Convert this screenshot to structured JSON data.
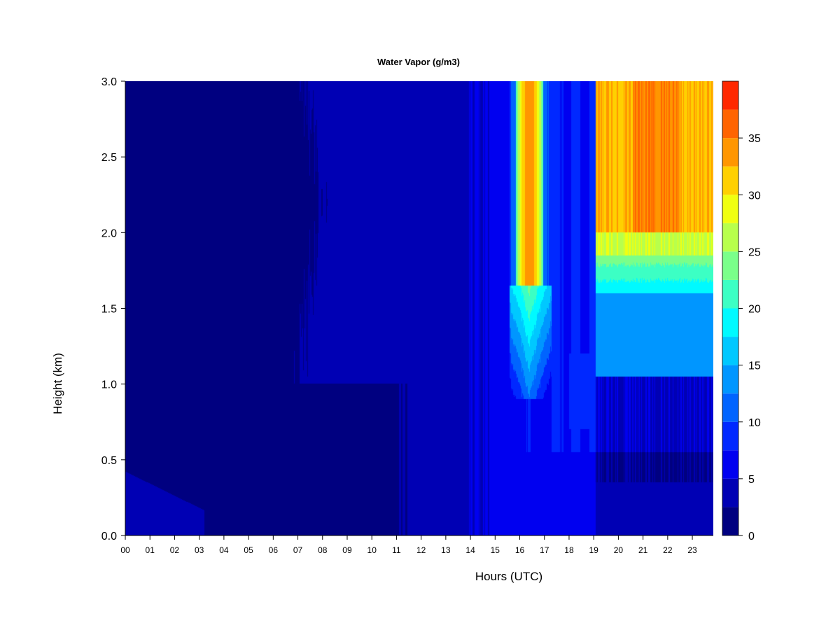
{
  "chart_data": {
    "type": "heatmap",
    "title": "Water Vapor (g/m3)",
    "xlabel": "Hours (UTC)",
    "ylabel": "Height (km)",
    "xlim": [
      0,
      23.85
    ],
    "ylim": [
      0,
      3.0
    ],
    "x_ticks": [
      0,
      1,
      2,
      3,
      4,
      5,
      6,
      7,
      8,
      9,
      10,
      11,
      12,
      13,
      14,
      15,
      16,
      17,
      18,
      19,
      20,
      21,
      22,
      23
    ],
    "x_tick_labels": [
      "00",
      "01",
      "02",
      "03",
      "04",
      "05",
      "06",
      "07",
      "08",
      "09",
      "10",
      "11",
      "12",
      "13",
      "14",
      "15",
      "16",
      "17",
      "18",
      "19",
      "20",
      "21",
      "22",
      "23"
    ],
    "y_ticks": [
      0.0,
      0.5,
      1.0,
      1.5,
      2.0,
      2.5,
      3.0
    ],
    "y_tick_labels": [
      "0.0",
      "0.5",
      "1.0",
      "1.5",
      "2.0",
      "2.5",
      "3.0"
    ],
    "colorbar": {
      "ticks": [
        0,
        5,
        10,
        15,
        20,
        25,
        30,
        35
      ],
      "tick_labels": [
        "0",
        "5",
        "10",
        "15",
        "20",
        "25",
        "30",
        "35"
      ],
      "levels": [
        0,
        2.5,
        5,
        7.5,
        10,
        12.5,
        15,
        17.5,
        20,
        22.5,
        25,
        27.5,
        30,
        32.5,
        35,
        37.5
      ],
      "colors": [
        "#000080",
        "#0000b4",
        "#0000f0",
        "#0028ff",
        "#0064ff",
        "#0096ff",
        "#00c8ff",
        "#00faff",
        "#3cffc4",
        "#7aff8a",
        "#b8ff4c",
        "#f0ff10",
        "#ffd000",
        "#ff9600",
        "#ff6400",
        "#ff2800",
        "#e00000",
        "#a00000"
      ]
    },
    "grid": false,
    "legend": "colorbar-right",
    "field_regions": [
      {
        "hours": [
          0,
          11.5
        ],
        "height_km": [
          0,
          3.0
        ],
        "value": 1.5
      },
      {
        "hours": [
          0,
          3
        ],
        "height_km": [
          0,
          0.4
        ],
        "value": 4
      },
      {
        "hours": [
          11.5,
          15.6
        ],
        "height_km": [
          0,
          3.0
        ],
        "value": 4.5
      },
      {
        "hours": [
          15.6,
          17.2
        ],
        "height_km": [
          1.6,
          3.0
        ],
        "value": 32
      },
      {
        "hours": [
          15.6,
          17.2
        ],
        "height_km": [
          0.8,
          1.6
        ],
        "value": 11
      },
      {
        "hours": [
          17.2,
          19.1
        ],
        "height_km": [
          0,
          3.0
        ],
        "value": 6
      },
      {
        "hours": [
          19.1,
          23.85
        ],
        "height_km": [
          1.9,
          3.0
        ],
        "value": 33
      },
      {
        "hours": [
          19.1,
          23.85
        ],
        "height_km": [
          1.6,
          1.9
        ],
        "value": 22
      },
      {
        "hours": [
          19.1,
          23.85
        ],
        "height_km": [
          1.05,
          1.6
        ],
        "value": 13
      },
      {
        "hours": [
          19.1,
          23.85
        ],
        "height_km": [
          0,
          1.05
        ],
        "value": 4
      }
    ]
  }
}
